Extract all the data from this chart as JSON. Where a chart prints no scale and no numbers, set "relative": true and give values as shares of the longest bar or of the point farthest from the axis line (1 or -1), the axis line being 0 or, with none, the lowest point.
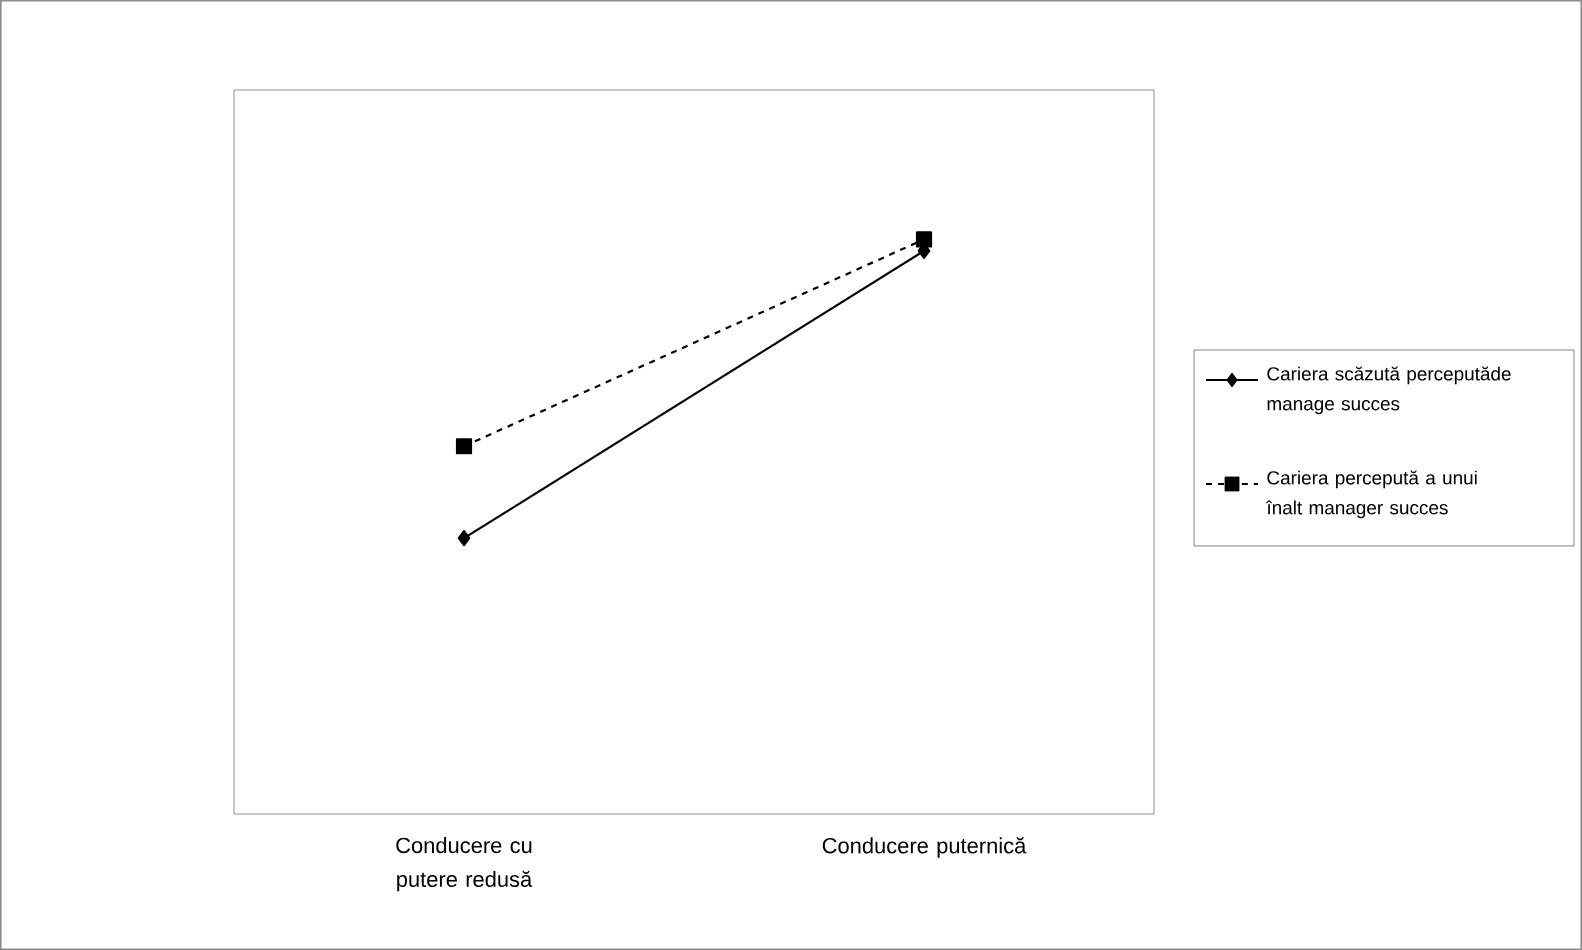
{
  "chart_data": {
    "type": "line",
    "relative": true,
    "categories": [
      "Conducere cu putere redusă",
      "Conducere puternică"
    ],
    "series": [
      {
        "name": "Cariera scăzută perceputăde manage succes",
        "color": "#000000",
        "marker": "diamond",
        "line_style": "solid",
        "values": [
          0.48,
          0.98
        ]
      },
      {
        "name": "Cariera percepută a unui înalt manager succes",
        "color": "#000000",
        "marker": "square",
        "line_style": "dashed",
        "values": [
          0.64,
          1
        ]
      }
    ],
    "legend": "right"
  }
}
